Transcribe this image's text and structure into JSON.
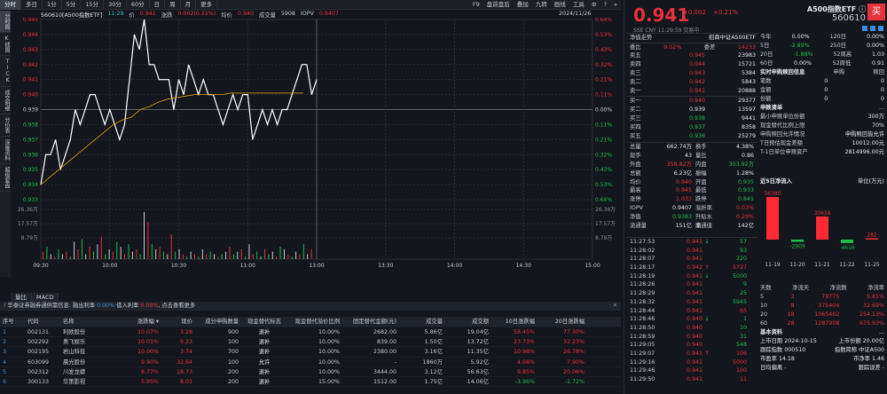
{
  "topbar": {
    "tabs": [
      "分时",
      "多日",
      "1分",
      "5分",
      "15分",
      "30分",
      "60分",
      "日",
      "周",
      "月",
      "更多"
    ],
    "tools": [
      "F9",
      "盘前盘后",
      "叠加",
      "九转",
      "画线",
      "工具",
      "⚙",
      "?",
      "»"
    ]
  },
  "sidebar": [
    "分时图",
    "K线图",
    "TICK",
    "成交明细",
    "分价表",
    "深度资料",
    "超级复盘"
  ],
  "chart_header": {
    "code_name": "560610[A500指数ETF]",
    "time": "11:29",
    "price_label": "价",
    "price": "0.941",
    "change_label": "涨跌",
    "change": "0.002(0.21%)",
    "avg_label": "均价",
    "avg": "0.940",
    "vol_label": "成交量",
    "vol": "5908",
    "iopv_label": "IOPV",
    "iopv": "0.9407",
    "date": "2024/11/26"
  },
  "chart_data": {
    "type": "line",
    "title": "560610 A500指数ETF 分时",
    "x_ticks": [
      "09:30",
      "10:00",
      "10:30",
      "11:00",
      "13:00",
      "13:30",
      "14:00",
      "14:30",
      "15:00"
    ],
    "y_left_ticks": [
      "0.945",
      "0.944",
      "0.943",
      "0.942",
      "0.941",
      "0.940",
      "0.939",
      "0.938",
      "0.937",
      "0.936",
      "0.935",
      "0.934",
      "0.933"
    ],
    "y_right_ticks": [
      "0.64%",
      "0.53%",
      "0.43%",
      "0.32%",
      "0.21%",
      "0.11%",
      "0.00%",
      "0.11%",
      "0.21%",
      "0.32%",
      "0.43%",
      "0.53%",
      "0.64%"
    ],
    "volume_ticks": [
      "26.36万",
      "17.57万",
      "8.79万"
    ],
    "prev_close": 0.939,
    "ylim": [
      0.933,
      0.945
    ],
    "series": [
      {
        "name": "price",
        "color": "#ffffff",
        "values": [
          0.934,
          0.936,
          0.936,
          0.937,
          0.935,
          0.936,
          0.937,
          0.939,
          0.938,
          0.939,
          0.94,
          0.94,
          0.939,
          0.938,
          0.939,
          0.938,
          0.937,
          0.938,
          0.941,
          0.944,
          0.943,
          0.945,
          0.942,
          0.942,
          0.941,
          0.941,
          0.941,
          0.939,
          0.941,
          0.94,
          0.942,
          0.941,
          0.94,
          0.941,
          0.94,
          0.94,
          0.939,
          0.938,
          0.939,
          0.94,
          0.939,
          0.94,
          0.94,
          0.937,
          0.938,
          0.939,
          0.938,
          0.939,
          0.938,
          0.939,
          0.939,
          0.94,
          0.941,
          0.942,
          0.942,
          0.94,
          0.941
        ]
      },
      {
        "name": "avg",
        "color": "#e3a11e",
        "values": [
          0.934,
          0.9345,
          0.935,
          0.9355,
          0.936,
          0.9365,
          0.937,
          0.9375,
          0.938,
          0.9383,
          0.9385,
          0.939,
          0.9392,
          0.9395,
          0.9397,
          0.9398,
          0.9399,
          0.94,
          0.94,
          0.94,
          0.94,
          0.9401,
          0.9401,
          0.9401,
          0.9401,
          0.9401,
          0.9401,
          0.9401,
          0.9401,
          0.9401
        ]
      }
    ],
    "volume_max": 26.36
  },
  "bottom_tabs": [
    "量比",
    "MACD"
  ],
  "notice": {
    "icon": "!",
    "text1": "华泰证券融券通供需信息: 融出利率 ",
    "rate1": "0.00%",
    "text2": " 借入利率 ",
    "rate2": "0.00%",
    "text3": ", 点击查看更多"
  },
  "table": {
    "headers": [
      "序号",
      "代码",
      "名称",
      "涨跌幅 ▾",
      "现价",
      "成分申购数量",
      "现金替代标志",
      "现金替代溢价比例",
      "固定替代金额(元)",
      "成交量",
      "成交额",
      "10日涨跌幅",
      "20日涨跌幅"
    ],
    "rows": [
      {
        "n": "1",
        "code": "002131",
        "name": "利欧股份",
        "pct": "10.07%",
        "price": "3.28",
        "qty": "900",
        "flag": "退补",
        "ratio": "10.00%",
        "fixed": "2682.00",
        "vol": "5.86亿",
        "amt": "19.04亿",
        "d10": "58.45%",
        "d20": "77.30%",
        "pc": "red",
        "d10c": "red",
        "d20c": "red"
      },
      {
        "n": "2",
        "code": "002292",
        "name": "奥飞娱乐",
        "pct": "10.01%",
        "price": "9.23",
        "qty": "100",
        "flag": "退补",
        "ratio": "10.00%",
        "fixed": "839.00",
        "vol": "1.50亿",
        "amt": "13.72亿",
        "d10": "23.73%",
        "d20": "32.23%",
        "pc": "red",
        "d10c": "red",
        "d20c": "red"
      },
      {
        "n": "3",
        "code": "002195",
        "name": "岩山科技",
        "pct": "10.00%",
        "price": "3.74",
        "qty": "700",
        "flag": "退补",
        "ratio": "10.00%",
        "fixed": "2380.00",
        "vol": "3.16亿",
        "amt": "11.35亿",
        "d10": "10.98%",
        "d20": "26.78%",
        "pc": "red",
        "d10c": "red",
        "d20c": "red"
      },
      {
        "n": "4",
        "code": "603099",
        "name": "晨光股份",
        "pct": "9.90%",
        "price": "32.64",
        "qty": "100",
        "flag": "允许",
        "ratio": "10.00%",
        "fixed": "-",
        "vol": "1860万",
        "amt": "5.92亿",
        "d10": "4.08%",
        "d20": "7.90%",
        "pc": "red",
        "d10c": "red",
        "d20c": "red"
      },
      {
        "n": "5",
        "code": "002312",
        "name": "川发龙蟒",
        "pct": "8.77%",
        "price": "18.73",
        "qty": "200",
        "flag": "退补",
        "ratio": "10.00%",
        "fixed": "3444.00",
        "vol": "3.12亿",
        "amt": "56.63亿",
        "d10": "9.85%",
        "d20": "20.06%",
        "pc": "red",
        "d10c": "red",
        "d20c": "red"
      },
      {
        "n": "6",
        "code": "300133",
        "name": "华策影视",
        "pct": "5.95%",
        "price": "8.01",
        "qty": "200",
        "flag": "退补",
        "ratio": "15.00%",
        "fixed": "1512.00",
        "vol": "1.75亿",
        "amt": "14.06亿",
        "d10": "-3.96%",
        "d20": "-1.72%",
        "pc": "red",
        "d10c": "green",
        "d20c": "green"
      }
    ]
  },
  "quote": {
    "price": "0.941",
    "change": "+0.002",
    "pct": "+0.21%",
    "name": "A500指数ETF",
    "code": "560610",
    "buy_label": "买",
    "meta": "SSE  CNY  11:29:59  交易中",
    "category_label": "净值走势",
    "tracking": "招商中证A500ETF",
    "weibi_label": "委比",
    "weibi": "9.02%",
    "weicha_label": "委差",
    "weicha": "14233"
  },
  "orderbook": {
    "asks": [
      {
        "l": "卖五",
        "p": "0.945",
        "v": "23983"
      },
      {
        "l": "卖四",
        "p": "0.944",
        "v": "15721"
      },
      {
        "l": "卖三",
        "p": "0.943",
        "v": "5384"
      },
      {
        "l": "卖二",
        "p": "0.942",
        "v": "5843"
      },
      {
        "l": "卖一",
        "p": "0.941",
        "v": "20888"
      }
    ],
    "bids": [
      {
        "l": "买一",
        "p": "0.940",
        "v": "29377",
        "c": "red"
      },
      {
        "l": "买二",
        "p": "0.939",
        "v": "13597",
        "c": "white"
      },
      {
        "l": "买三",
        "p": "0.938",
        "v": "9441",
        "c": "green"
      },
      {
        "l": "买四",
        "p": "0.937",
        "v": "8358",
        "c": "green"
      },
      {
        "l": "买五",
        "p": "0.936",
        "v": "25279",
        "c": "green"
      }
    ]
  },
  "stats": [
    {
      "a": "总量",
      "b": "662.74万",
      "bc": "white",
      "d": "换手",
      "e": "4.38%",
      "ec": "white"
    },
    {
      "a": "现手",
      "b": "43",
      "bc": "white",
      "d": "量比",
      "e": "0.86",
      "ec": "white"
    },
    {
      "a": "外盘",
      "b": "358.82万",
      "bc": "red",
      "d": "内盘",
      "e": "303.92万",
      "ec": "green"
    },
    {
      "a": "总额",
      "b": "6.23亿",
      "bc": "white",
      "d": "振幅",
      "e": "1.28%",
      "ec": "white"
    },
    {
      "a": "均价",
      "b": "0.940",
      "bc": "red",
      "d": "开盘",
      "e": "0.935",
      "ec": "green"
    },
    {
      "a": "最高",
      "b": "0.945",
      "bc": "red",
      "d": "最低",
      "e": "0.933",
      "ec": "green"
    },
    {
      "a": "涨停",
      "b": "1.033",
      "bc": "red",
      "d": "跌停",
      "e": "0.845",
      "ec": "green"
    },
    {
      "a": "IOPV",
      "b": "0.9407",
      "bc": "white",
      "d": "溢折率",
      "e": "0.03%",
      "ec": "red"
    },
    {
      "a": "净值",
      "b": "0.9383",
      "bc": "green",
      "d": "升贴水率",
      "e": "0.29%",
      "ec": "red"
    },
    {
      "a": "流通量",
      "b": "151亿",
      "bc": "white",
      "d": "流通值",
      "e": "142亿",
      "ec": "white"
    }
  ],
  "returns": [
    {
      "a": "今年",
      "b": "0.00%",
      "bc": "white",
      "c": "120日",
      "d": "0.00%"
    },
    {
      "a": "5日",
      "b": "-2.89%",
      "bc": "green",
      "c": "250日",
      "d": "0.00%"
    },
    {
      "a": "20日",
      "b": "-1.88%",
      "bc": "green",
      "c": "52周高",
      "d": "1.03"
    },
    {
      "a": "60日",
      "b": "0.00%",
      "bc": "white",
      "c": "52周低",
      "d": "0.91"
    }
  ],
  "subscription": {
    "title": "实时申购赎回信息",
    "col1": "申购",
    "col2": "赎回",
    "rows": [
      {
        "l": "笔数",
        "a": "0",
        "b": "0"
      },
      {
        "l": "金额",
        "a": "0",
        "b": "0"
      },
      {
        "l": "份额",
        "a": "0",
        "b": "0"
      }
    ]
  },
  "creation": {
    "title": "申赎清单",
    "more": "...",
    "rows": [
      {
        "l": "最小申赎单位份额",
        "v": "300万"
      },
      {
        "l": "现金替代比例上限",
        "v": "70%"
      },
      {
        "l": "申购赎回允许情况",
        "v": "申购赎回皆允许"
      },
      {
        "l": "T日预估现金差额",
        "v": "10012.00元"
      },
      {
        "l": "T-1日单位申赎资产",
        "v": "2814996.00元"
      }
    ]
  },
  "inflow": {
    "title": "近5日净流入",
    "unit": "单位(万元)",
    "bars": [
      {
        "date": "11-19",
        "value": 56380
      },
      {
        "date": "11-20",
        "value": -2909
      },
      {
        "date": "11-21",
        "value": 30638
      },
      {
        "date": "11-22",
        "value": -4616
      },
      {
        "date": "11-25",
        "value": 282
      }
    ]
  },
  "flow_table": {
    "headers": [
      "天数",
      "净流天",
      "净流数",
      "净流率"
    ],
    "rows": [
      {
        "d": "5",
        "a": "3",
        "b": "79775",
        "c": "5.81%"
      },
      {
        "d": "10",
        "a": "8",
        "b": "375404",
        "c": "32.69%"
      },
      {
        "d": "20",
        "a": "18",
        "b": "1065402",
        "c": "254.13%"
      },
      {
        "d": "60",
        "a": "28",
        "b": "1287908",
        "c": "675.93%"
      }
    ]
  },
  "basic": {
    "title": "基本资料",
    "more": "...",
    "list_date_label": "上市日期",
    "list_date": "2024-10-15",
    "shares_label": "上市份额",
    "shares": "20.00亿",
    "index_label": "跟踪指数",
    "index_code": "000510",
    "index_name_label": "指数简称",
    "index_name": "中证A500",
    "pe_label": "市盈率",
    "pe": "14.18",
    "pb_label": "市净率",
    "pb": "1.46",
    "dev_label": "日均偏离",
    "dev": "-",
    "err_label": "跟踪误差",
    "err": "-"
  },
  "ticks": [
    {
      "t": "11:27:53",
      "p": "0.941",
      "a": "↓",
      "ac": "green",
      "v": "57",
      "vc": "green"
    },
    {
      "t": "11:28:02",
      "p": "0.941",
      "a": "",
      "ac": "",
      "v": "93",
      "vc": "green"
    },
    {
      "t": "11:28:07",
      "p": "0.941",
      "a": "",
      "ac": "",
      "v": "220",
      "vc": "green"
    },
    {
      "t": "11:28:17",
      "p": "0.942",
      "a": "↑",
      "ac": "red",
      "v": "5727",
      "vc": "red"
    },
    {
      "t": "11:28:19",
      "p": "0.941",
      "a": "↓",
      "ac": "green",
      "v": "5000",
      "vc": "green"
    },
    {
      "t": "11:28:26",
      "p": "0.941",
      "a": "",
      "ac": "",
      "v": "9",
      "vc": "green"
    },
    {
      "t": "11:28:29",
      "p": "0.941",
      "a": "",
      "ac": "",
      "v": "25",
      "vc": "green"
    },
    {
      "t": "11:28:32",
      "p": "0.941",
      "a": "",
      "ac": "",
      "v": "5945",
      "vc": "green"
    },
    {
      "t": "11:28:44",
      "p": "0.941",
      "a": "",
      "ac": "",
      "v": "65",
      "vc": "red"
    },
    {
      "t": "11:28:46",
      "p": "0.940",
      "a": "↓",
      "ac": "green",
      "v": "1",
      "vc": "green"
    },
    {
      "t": "11:28:50",
      "p": "0.940",
      "a": "",
      "ac": "",
      "v": "10",
      "vc": "green"
    },
    {
      "t": "11:28:59",
      "p": "0.940",
      "a": "",
      "ac": "",
      "v": "31",
      "vc": "green"
    },
    {
      "t": "11:29:05",
      "p": "0.940",
      "a": "",
      "ac": "",
      "v": "548",
      "vc": "green"
    },
    {
      "t": "11:29:07",
      "p": "0.941",
      "a": "↑",
      "ac": "red",
      "v": "106",
      "vc": "red"
    },
    {
      "t": "11:29:16",
      "p": "0.941",
      "a": "",
      "ac": "",
      "v": "5000",
      "vc": "red"
    },
    {
      "t": "11:29:46",
      "p": "0.941",
      "a": "",
      "ac": "",
      "v": "100",
      "vc": "red"
    },
    {
      "t": "11:29:50",
      "p": "0.941",
      "a": "",
      "ac": "",
      "v": "11",
      "vc": "red"
    }
  ]
}
